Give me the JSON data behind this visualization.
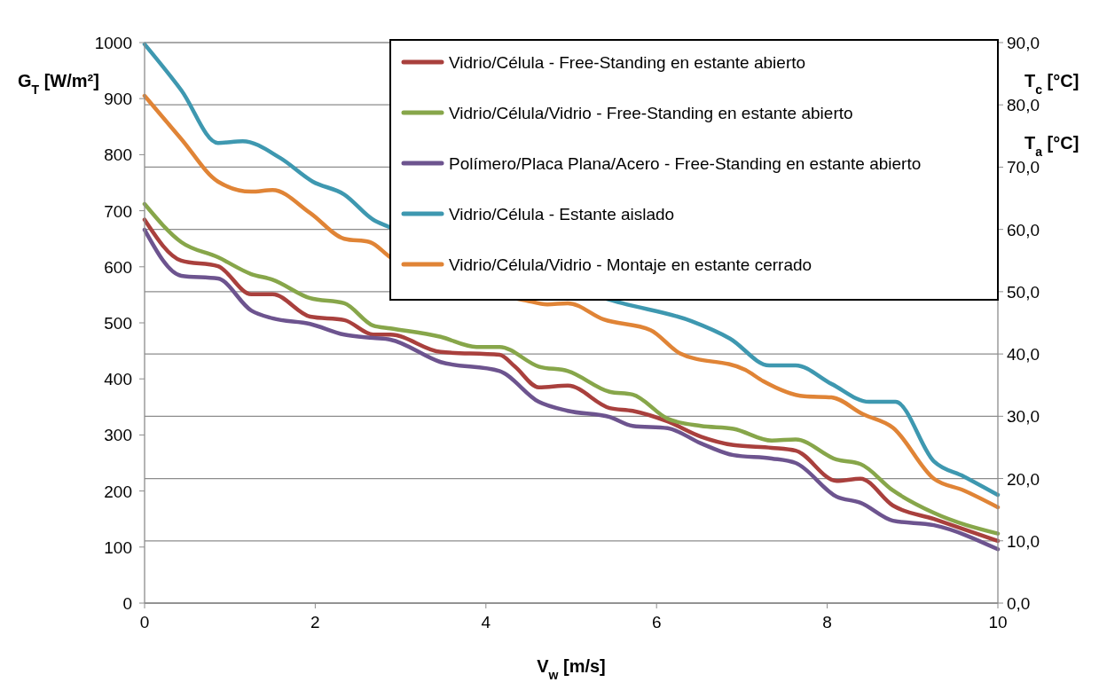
{
  "chart_data": {
    "type": "line",
    "xlabel": "V$_{w}$ [m/s]",
    "ylabel": "G$_{T}$ [W/m²]",
    "y2label": "T$_{c}$ [°C]",
    "annotations": [
      "T$_{a}$ [°C]"
    ],
    "xlim": [
      0,
      10
    ],
    "xticks": [
      0,
      2,
      4,
      6,
      8,
      10
    ],
    "ylim": [
      0,
      1000
    ],
    "yticks": [
      0,
      100,
      200,
      300,
      400,
      500,
      600,
      700,
      800,
      900,
      1000
    ],
    "y2lim": [
      0,
      90
    ],
    "y2ticks": [
      {
        "value": 0,
        "label": "0,0"
      },
      {
        "value": 10,
        "label": "10,0"
      },
      {
        "value": 20,
        "label": "20,0"
      },
      {
        "value": 30,
        "label": "30,0"
      },
      {
        "value": 40,
        "label": "40,0"
      },
      {
        "value": 50,
        "label": "50,0"
      },
      {
        "value": 60,
        "label": "60,0"
      },
      {
        "value": 70,
        "label": "70,0"
      },
      {
        "value": 80,
        "label": "80,0"
      },
      {
        "value": 90,
        "label": "90,0"
      }
    ],
    "grid": "y2",
    "legend": "top right",
    "line_style": "solid",
    "marker": "none",
    "series": [
      {
        "name": "Vidrio/Célula - Free-Standing en estante abierto",
        "color": "#a9403d",
        "x": [
          0,
          0.43,
          0.86,
          1.25,
          1.5,
          1.94,
          2.34,
          2.68,
          2.88,
          3.47,
          4.16,
          4.34,
          4.62,
          4.96,
          5.45,
          5.72,
          6.13,
          6.52,
          6.9,
          7.35,
          7.63,
          8.11,
          8.39,
          8.77,
          9.25,
          10
        ],
        "values": [
          684,
          611,
          601,
          551,
          551,
          511,
          505,
          479,
          479,
          448,
          443,
          422,
          385,
          388,
          348,
          343,
          324,
          297,
          282,
          277,
          272,
          218,
          222,
          174,
          150,
          111
        ]
      },
      {
        "name": "Vidrio/Célula/Vidrio - Free-Standing en estante abierto",
        "color": "#87a64a",
        "x": [
          0,
          0.43,
          0.86,
          1.25,
          1.5,
          1.94,
          2.34,
          2.68,
          2.88,
          3.47,
          3.89,
          4.16,
          4.62,
          4.96,
          5.45,
          5.72,
          6.13,
          6.52,
          6.9,
          7.35,
          7.63,
          8.11,
          8.39,
          8.77,
          9.25,
          10
        ],
        "values": [
          712,
          644,
          617,
          587,
          577,
          544,
          535,
          495,
          490,
          475,
          457,
          457,
          422,
          414,
          377,
          372,
          329,
          316,
          311,
          290,
          292,
          256,
          248,
          201,
          161,
          124
        ]
      },
      {
        "name": "Polímero/Placa Plana/Acero - Free-Standing en estante abierto",
        "color": "#6d548f",
        "x": [
          0,
          0.43,
          0.86,
          1.25,
          1.5,
          1.94,
          2.34,
          2.68,
          2.88,
          3.47,
          4.16,
          4.62,
          4.96,
          5.45,
          5.72,
          6.13,
          6.52,
          6.9,
          7.35,
          7.63,
          8.11,
          8.39,
          8.77,
          9.25,
          10
        ],
        "values": [
          666,
          584,
          579,
          522,
          508,
          498,
          479,
          473,
          470,
          430,
          414,
          359,
          343,
          332,
          316,
          312,
          285,
          264,
          258,
          250,
          190,
          179,
          147,
          139,
          96
        ]
      },
      {
        "name": "Vidrio/Célula - Estante aislado",
        "color": "#3e98b0",
        "x": [
          0,
          0.43,
          0.86,
          1.15,
          1.59,
          1.97,
          2.34,
          2.68,
          2.85,
          5.6,
          6.41,
          6.86,
          7.32,
          7.63,
          8.05,
          8.49,
          8.8,
          9.25,
          9.6,
          10
        ],
        "values": [
          997,
          915,
          821,
          824,
          794,
          752,
          729,
          684,
          672,
          535,
          503,
          472,
          424,
          424,
          391,
          359,
          359,
          253,
          226,
          193
        ]
      },
      {
        "name": "Vidrio/Célula/Vidrio - Montaje en estante cerrado",
        "color": "#e08436",
        "x": [
          0,
          0.43,
          0.86,
          1.25,
          1.5,
          1.94,
          2.34,
          2.64,
          2.88,
          4.47,
          4.72,
          4.96,
          5.38,
          5.93,
          6.27,
          7.04,
          7.25,
          7.73,
          8.05,
          8.42,
          8.77,
          9.25,
          9.6,
          10
        ],
        "values": [
          905,
          828,
          752,
          734,
          737,
          696,
          650,
          644,
          617,
          540,
          533,
          535,
          506,
          487,
          446,
          416,
          396,
          369,
          367,
          337,
          313,
          222,
          201,
          171
        ]
      }
    ]
  }
}
